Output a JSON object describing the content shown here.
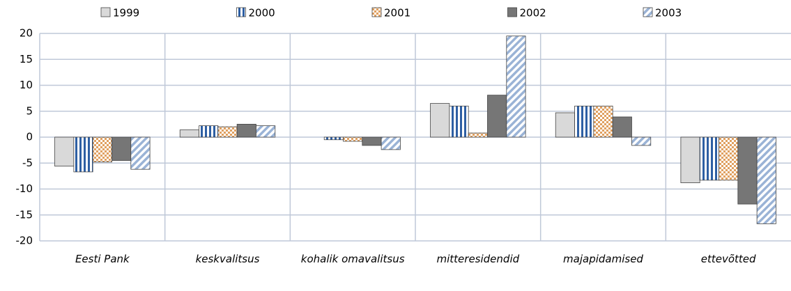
{
  "chart_data": {
    "type": "bar",
    "categories": [
      "Eesti Pank",
      "keskvalitsus",
      "kohalik omavalitsus",
      "mitteresidendid",
      "majapidamised",
      "ettevõtted"
    ],
    "series": [
      {
        "name": "1999",
        "color": "#d9d9d9",
        "pattern": "solid",
        "values": [
          -5.6,
          1.4,
          0,
          6.5,
          4.7,
          -8.8
        ]
      },
      {
        "name": "2000",
        "color": "#2e5fa3",
        "pattern": "vertical",
        "values": [
          -6.7,
          2.2,
          -0.5,
          6.0,
          6.0,
          -8.3
        ]
      },
      {
        "name": "2001",
        "color": "#e0a060",
        "pattern": "checker",
        "values": [
          -4.8,
          2.0,
          -0.8,
          0.8,
          6.0,
          -8.3
        ]
      },
      {
        "name": "2002",
        "color": "#767676",
        "pattern": "solid",
        "values": [
          -4.5,
          2.5,
          -1.6,
          8.1,
          3.9,
          -12.9
        ]
      },
      {
        "name": "2003",
        "color": "#9ab3d6",
        "pattern": "diagonal",
        "values": [
          -6.2,
          2.2,
          -2.4,
          19.5,
          -1.6,
          -16.7
        ]
      }
    ],
    "ylim": [
      -20,
      20
    ],
    "yticks": [
      -20,
      -15,
      -10,
      -5,
      0,
      5,
      10,
      15,
      20
    ],
    "grid": true,
    "legend": "top"
  }
}
